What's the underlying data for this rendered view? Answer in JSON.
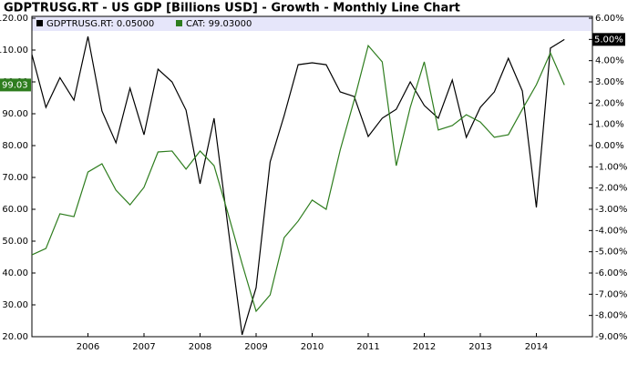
{
  "chart_data": {
    "type": "line",
    "title": "GDPTRUSG.RT - US GDP [Billions USD] - Growth - Monthly Line Chart",
    "x": [
      2005,
      2005.25,
      2005.5,
      2005.75,
      2006,
      2006.25,
      2006.5,
      2006.75,
      2007,
      2007.25,
      2007.5,
      2007.75,
      2008,
      2008.25,
      2008.5,
      2008.75,
      2009,
      2009.25,
      2009.5,
      2009.75,
      2010,
      2010.25,
      2010.5,
      2010.75,
      2011,
      2011.25,
      2011.5,
      2011.75,
      2012,
      2012.25,
      2012.5,
      2012.75,
      2013,
      2013.25,
      2013.5,
      2013.75,
      2014,
      2014.25,
      2014.5
    ],
    "xlim": [
      2005,
      2015
    ],
    "xticks": [
      2006,
      2007,
      2008,
      2009,
      2010,
      2011,
      2012,
      2013,
      2014
    ],
    "ylim": [
      20,
      120
    ],
    "yticks": [
      {
        "value": 20,
        "label": "20.00"
      },
      {
        "value": 30,
        "label": "30.00"
      },
      {
        "value": 40,
        "label": "40.00"
      },
      {
        "value": 50,
        "label": "50.00"
      },
      {
        "value": 60,
        "label": "60.00"
      },
      {
        "value": 70,
        "label": "70.00"
      },
      {
        "value": 80,
        "label": "80.00"
      },
      {
        "value": 90,
        "label": "90.00"
      },
      {
        "value": 100,
        "label": "100.00"
      },
      {
        "value": 110,
        "label": "110.00"
      },
      {
        "value": 120,
        "label": "120.00"
      }
    ],
    "y2lim": [
      -9,
      6
    ],
    "y2ticks": [
      {
        "value": 6,
        "label": "6.00%"
      },
      {
        "value": 5,
        "label": "5.00%"
      },
      {
        "value": 4,
        "label": "4.00%"
      },
      {
        "value": 3,
        "label": "3.00%"
      },
      {
        "value": 2,
        "label": "2.00%"
      },
      {
        "value": 1,
        "label": "1.00%"
      },
      {
        "value": 0,
        "label": "0.00%"
      },
      {
        "value": -1,
        "label": "-1.00%"
      },
      {
        "value": -2,
        "label": "-2.00%"
      },
      {
        "value": -3,
        "label": "-3.00%"
      },
      {
        "value": -4,
        "label": "-4.00%"
      },
      {
        "value": -5,
        "label": "-5.00%"
      },
      {
        "value": -6,
        "label": "-6.00%"
      },
      {
        "value": -7,
        "label": "-7.00%"
      },
      {
        "value": -8,
        "label": "-8.00%"
      },
      {
        "value": -9,
        "label": "-9.00%"
      }
    ],
    "series": [
      {
        "name": "GDPTRUSG.RT: 0.05000",
        "color": "#000000",
        "axis": "y2",
        "values": [
          4.29,
          1.8,
          3.2,
          2.14,
          5.14,
          1.63,
          0.13,
          2.7,
          0.51,
          3.6,
          3.0,
          1.67,
          -1.8,
          1.29,
          -3.86,
          -8.91,
          -6.69,
          -0.77,
          1.41,
          3.81,
          3.9,
          3.81,
          2.53,
          2.31,
          0.43,
          1.29,
          1.71,
          3.0,
          1.89,
          1.29,
          3.09,
          0.39,
          1.8,
          2.53,
          4.11,
          2.57,
          -2.91,
          4.59,
          5.0
        ],
        "value_labels": [
          null,
          null,
          null,
          null,
          null,
          null,
          null,
          null,
          null,
          null,
          null,
          null,
          null,
          null,
          null,
          null,
          null,
          null,
          null,
          null,
          null,
          null,
          null,
          null,
          null,
          null,
          null,
          null,
          null,
          null,
          null,
          null,
          null,
          null,
          null,
          null,
          null,
          null,
          "5.00%"
        ]
      },
      {
        "name": "CAT: 99.03000",
        "color": "#2e7d1e",
        "values": [
          45.7,
          47.7,
          58.6,
          57.7,
          71.7,
          74.3,
          66,
          61.4,
          66.9,
          78,
          78.3,
          72.6,
          78.3,
          73.7,
          58.6,
          42.9,
          28,
          33.1,
          51.1,
          56.3,
          62.9,
          60,
          78.6,
          94.3,
          111.4,
          106.3,
          73.7,
          92,
          106.3,
          84.9,
          86.3,
          89.7,
          87.4,
          82.6,
          83.4,
          91.4,
          99.1,
          109.1,
          99.03
        ],
        "value_labels": [
          null,
          null,
          null,
          null,
          null,
          null,
          null,
          null,
          null,
          null,
          null,
          null,
          null,
          null,
          null,
          null,
          null,
          null,
          null,
          null,
          null,
          null,
          null,
          null,
          null,
          null,
          null,
          null,
          null,
          null,
          null,
          null,
          null,
          null,
          null,
          null,
          null,
          null,
          "99.03"
        ]
      }
    ]
  }
}
